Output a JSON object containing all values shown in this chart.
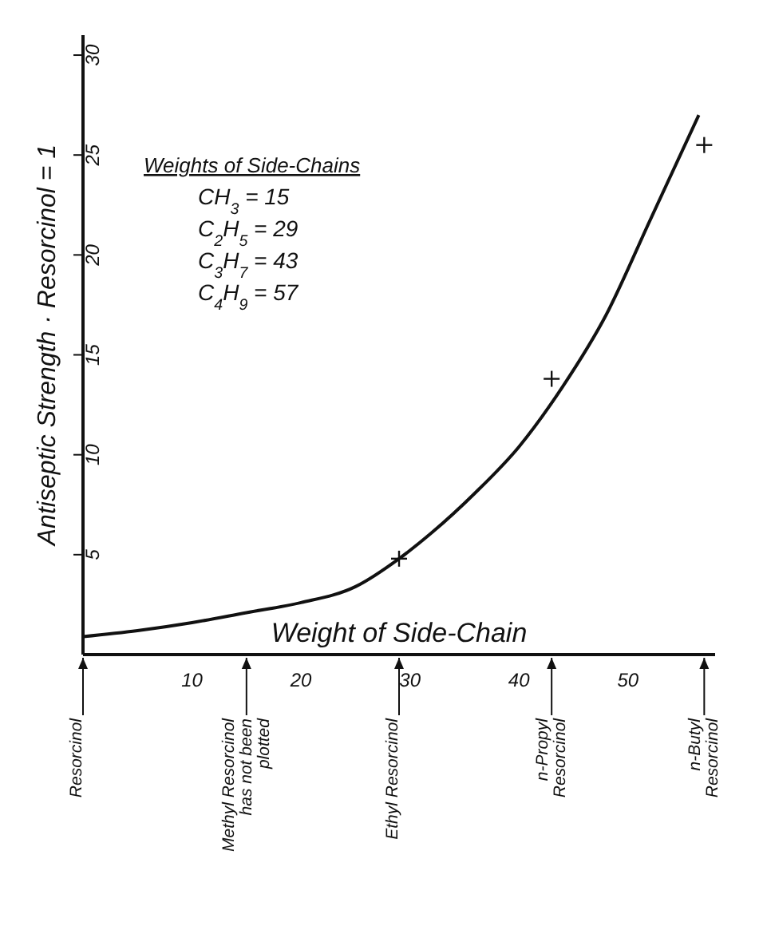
{
  "chart_data": {
    "type": "line",
    "xlabel": "Weight of Side-Chain",
    "ylabel": "Antiseptic Strength · Resorcinol = 1",
    "xlim": [
      0,
      58
    ],
    "xticks": [
      10,
      20,
      30,
      40,
      50
    ],
    "ref_lines": [
      {
        "axis": "x",
        "value": 0,
        "label": "Resorcinol"
      },
      {
        "axis": "x",
        "value": 15,
        "label": "Methyl Resorcinol has not been plotted"
      },
      {
        "axis": "x",
        "value": 29,
        "label": "Ethyl Resorcinol"
      },
      {
        "axis": "x",
        "value": 43,
        "label": "n-Propyl Resorcinol"
      },
      {
        "axis": "x",
        "value": 57,
        "label": "n-Butyl Resorcinol"
      }
    ],
    "ylim": [
      0,
      31
    ],
    "yticks": [
      5,
      10,
      15,
      20,
      25,
      30
    ],
    "grid": false,
    "legend": false,
    "series": [
      {
        "color": "#111111",
        "marker": "none",
        "x": [
          0,
          5,
          10,
          15,
          20,
          25,
          29,
          32,
          36,
          40,
          44,
          48,
          52,
          56.5
        ],
        "values": [
          0.9,
          1.2,
          1.6,
          2.1,
          2.6,
          3.4,
          4.8,
          6.1,
          8.1,
          10.4,
          13.4,
          17.0,
          21.7,
          27
        ]
      },
      {
        "type": "scatter",
        "color": "#111111",
        "marker": "cross",
        "x": [
          29,
          43,
          57
        ],
        "values": [
          4.8,
          13.8,
          25.5
        ]
      }
    ],
    "annotations": [
      "Weights of Side-Chains",
      "CH$_{3}$ = 15",
      "C$_{2}$H$_{5}$ = 29",
      "C$_{3}$H$_{7}$ = 43",
      "C$_{4}$H$_{9}$ = 57"
    ]
  }
}
